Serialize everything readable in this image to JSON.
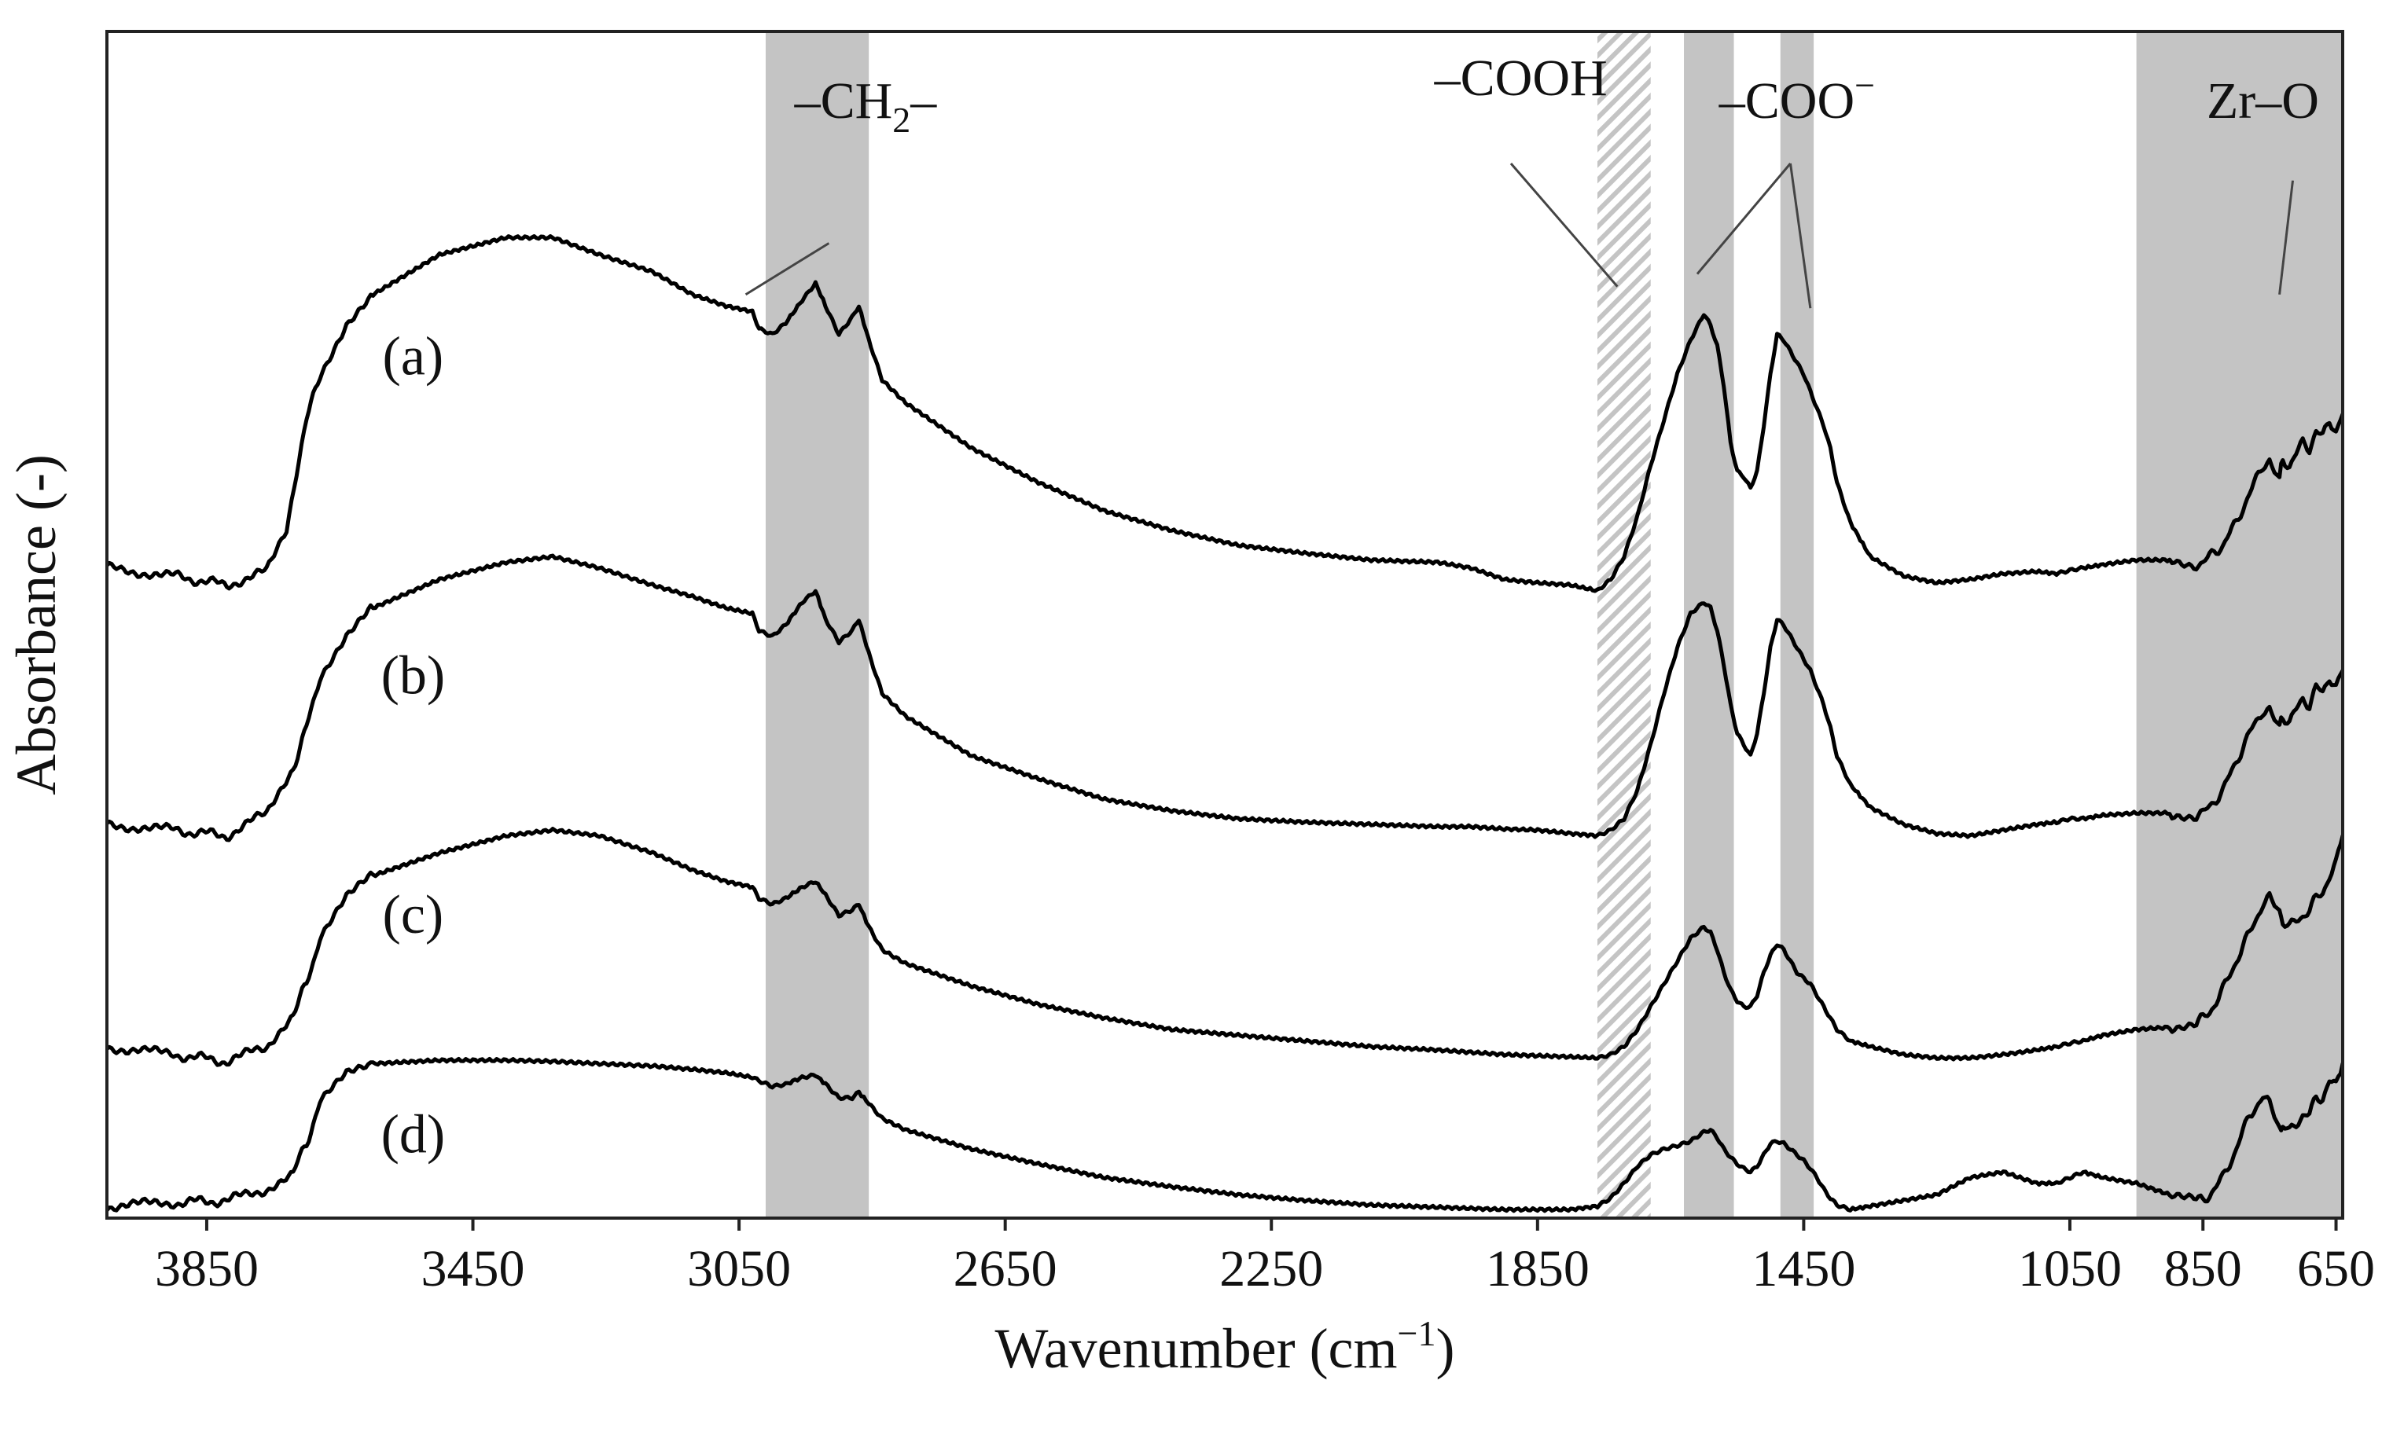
{
  "chart_data": {
    "type": "line",
    "title": "",
    "xlabel": "Wavenumber (cm",
    "xlabel_sup": "−1",
    "xlabel_close": ")",
    "ylabel": "Absorbance (-)",
    "xlim": [
      4000,
      640
    ],
    "x_reversed": true,
    "ylim": [
      0,
      10
    ],
    "grid": false,
    "xticks": [
      3850,
      3450,
      3050,
      2650,
      2250,
      1850,
      1450,
      1050,
      850,
      650
    ],
    "xtick_labels": [
      "3850",
      "3450",
      "3050",
      "2650",
      "2250",
      "1850",
      "1450",
      "1050",
      "850",
      "650"
    ],
    "bands": [
      {
        "name": "ch2",
        "from": 3010,
        "to": 2855,
        "style": "solid",
        "color": "#c4c4c4"
      },
      {
        "name": "cooh",
        "from": 1760,
        "to": 1680,
        "style": "hatched",
        "color": "#c4c4c4"
      },
      {
        "name": "coo-asym",
        "from": 1630,
        "to": 1555,
        "style": "solid",
        "color": "#c4c4c4"
      },
      {
        "name": "coo-sym",
        "from": 1485,
        "to": 1435,
        "style": "solid",
        "color": "#c4c4c4"
      },
      {
        "name": "zr-o",
        "from": 950,
        "to": 640,
        "style": "solid",
        "color": "#c4c4c4"
      }
    ],
    "annotations": [
      {
        "name": "ch2",
        "text_main": "–CH",
        "text_sub": "2",
        "text_tail": "–",
        "x": 2860,
        "y": 9.6,
        "arrow_from": [
          2915,
          8.5
        ],
        "arrow_to": [
          3040,
          8.05
        ]
      },
      {
        "name": "cooh",
        "text_main": "–COOH",
        "text_sub": "",
        "text_tail": "",
        "x": 1875,
        "y": 9.8,
        "arrow_from": [
          1890,
          9.2
        ],
        "arrow_to": [
          1730,
          8.12
        ]
      },
      {
        "name": "coo",
        "text_main": "–COO",
        "text_sub": "",
        "text_tail": "",
        "text_sup": "−",
        "x": 1460,
        "y": 9.6,
        "arrow_from": [
          1470,
          9.2
        ],
        "arrow_to": [
          1610,
          8.23
        ]
      },
      {
        "name": "coo2",
        "text_main": "",
        "text_sub": "",
        "text_tail": "",
        "x": 0,
        "y": 0,
        "arrow_from": [
          1470,
          9.2
        ],
        "arrow_to": [
          1440,
          7.93
        ]
      },
      {
        "name": "zr-o",
        "text_main": "Zr–O",
        "text_sub": "",
        "text_tail": "",
        "x": 760,
        "y": 9.6,
        "arrow_from": [
          715,
          9.05
        ],
        "arrow_to": [
          735,
          8.05
        ]
      }
    ],
    "series": [
      {
        "name": "(a)",
        "label_x": 3540,
        "label_y": 7.35,
        "x": [
          4000,
          3900,
          3820,
          3760,
          3730,
          3700,
          3680,
          3640,
          3600,
          3500,
          3400,
          3330,
          3260,
          3180,
          3120,
          3070,
          3030,
          3020,
          3000,
          2980,
          2955,
          2935,
          2920,
          2900,
          2880,
          2870,
          2855,
          2835,
          2800,
          2700,
          2600,
          2500,
          2400,
          2300,
          2200,
          2100,
          2000,
          1950,
          1900,
          1850,
          1800,
          1760,
          1740,
          1720,
          1700,
          1680,
          1660,
          1640,
          1620,
          1600,
          1590,
          1580,
          1570,
          1560,
          1550,
          1540,
          1530,
          1520,
          1510,
          1500,
          1490,
          1480,
          1470,
          1460,
          1450,
          1440,
          1430,
          1420,
          1410,
          1400,
          1380,
          1350,
          1300,
          1250,
          1200,
          1150,
          1100,
          1070,
          1050,
          1030,
          1000,
          950,
          900,
          860,
          850,
          840,
          820,
          800,
          780,
          760,
          750,
          735,
          730,
          720,
          700,
          690,
          680,
          670,
          660,
          650,
          640
        ],
        "y": [
          5.65,
          5.58,
          5.5,
          5.62,
          5.95,
          6.95,
          7.35,
          7.8,
          8.05,
          8.4,
          8.55,
          8.55,
          8.4,
          8.25,
          8.05,
          7.95,
          7.9,
          7.75,
          7.7,
          7.8,
          8.0,
          8.15,
          7.95,
          7.7,
          7.85,
          7.95,
          7.65,
          7.3,
          7.1,
          6.7,
          6.4,
          6.15,
          5.98,
          5.85,
          5.78,
          5.72,
          5.7,
          5.65,
          5.55,
          5.52,
          5.5,
          5.45,
          5.55,
          5.75,
          6.1,
          6.55,
          6.95,
          7.35,
          7.65,
          7.88,
          7.78,
          7.6,
          7.25,
          6.75,
          6.5,
          6.45,
          6.35,
          6.5,
          6.9,
          7.35,
          7.7,
          7.65,
          7.55,
          7.45,
          7.35,
          7.2,
          7.05,
          6.9,
          6.7,
          6.4,
          6.05,
          5.75,
          5.58,
          5.52,
          5.55,
          5.6,
          5.62,
          5.6,
          5.63,
          5.65,
          5.68,
          5.72,
          5.72,
          5.68,
          5.7,
          5.75,
          5.85,
          6.05,
          6.3,
          6.55,
          6.6,
          6.45,
          6.6,
          6.55,
          6.75,
          6.7,
          6.85,
          6.8,
          6.95,
          6.85,
          7.0
        ]
      },
      {
        "name": "(b)",
        "label_x": 3540,
        "label_y": 4.55,
        "x": [
          4000,
          3900,
          3820,
          3760,
          3720,
          3700,
          3680,
          3640,
          3600,
          3500,
          3400,
          3330,
          3260,
          3180,
          3120,
          3070,
          3030,
          3020,
          3000,
          2980,
          2955,
          2935,
          2920,
          2900,
          2880,
          2870,
          2855,
          2835,
          2800,
          2700,
          2600,
          2500,
          2400,
          2300,
          2200,
          2100,
          2000,
          1950,
          1900,
          1850,
          1800,
          1760,
          1740,
          1720,
          1700,
          1680,
          1660,
          1640,
          1620,
          1600,
          1590,
          1580,
          1570,
          1560,
          1550,
          1540,
          1530,
          1520,
          1510,
          1500,
          1490,
          1480,
          1470,
          1460,
          1450,
          1440,
          1430,
          1420,
          1410,
          1400,
          1380,
          1350,
          1300,
          1250,
          1200,
          1150,
          1100,
          1070,
          1050,
          1030,
          1000,
          950,
          900,
          860,
          850,
          840,
          820,
          800,
          780,
          760,
          750,
          735,
          730,
          720,
          700,
          690,
          680,
          670,
          660,
          650,
          640
        ],
        "y": [
          3.4,
          3.35,
          3.3,
          3.5,
          3.9,
          4.25,
          4.7,
          5.05,
          5.3,
          5.55,
          5.7,
          5.75,
          5.65,
          5.5,
          5.4,
          5.3,
          5.25,
          5.1,
          5.05,
          5.15,
          5.35,
          5.45,
          5.2,
          5.0,
          5.1,
          5.2,
          4.9,
          4.55,
          4.35,
          4.0,
          3.8,
          3.62,
          3.52,
          3.45,
          3.42,
          3.4,
          3.38,
          3.38,
          3.36,
          3.35,
          3.32,
          3.3,
          3.35,
          3.45,
          3.7,
          4.1,
          4.55,
          4.95,
          5.25,
          5.35,
          5.3,
          5.1,
          4.8,
          4.45,
          4.2,
          4.1,
          4.0,
          4.2,
          4.55,
          4.95,
          5.2,
          5.15,
          5.05,
          4.95,
          4.85,
          4.75,
          4.6,
          4.45,
          4.25,
          4.0,
          3.75,
          3.55,
          3.4,
          3.32,
          3.3,
          3.35,
          3.4,
          3.42,
          3.45,
          3.45,
          3.48,
          3.5,
          3.5,
          3.48,
          3.5,
          3.55,
          3.7,
          3.95,
          4.2,
          4.4,
          4.4,
          4.25,
          4.35,
          4.3,
          4.5,
          4.45,
          4.6,
          4.55,
          4.7,
          4.6,
          4.75
        ]
      },
      {
        "name": "(c)",
        "label_x": 3540,
        "label_y": 2.45,
        "x": [
          4000,
          3900,
          3820,
          3760,
          3720,
          3700,
          3680,
          3640,
          3600,
          3500,
          3400,
          3330,
          3260,
          3180,
          3120,
          3070,
          3030,
          3020,
          3000,
          2980,
          2955,
          2935,
          2920,
          2900,
          2880,
          2870,
          2855,
          2835,
          2800,
          2700,
          2600,
          2500,
          2400,
          2300,
          2200,
          2100,
          2000,
          1950,
          1900,
          1850,
          1800,
          1760,
          1740,
          1720,
          1700,
          1680,
          1660,
          1640,
          1620,
          1600,
          1590,
          1580,
          1570,
          1560,
          1550,
          1540,
          1530,
          1520,
          1510,
          1500,
          1490,
          1480,
          1470,
          1460,
          1450,
          1440,
          1430,
          1420,
          1410,
          1400,
          1380,
          1350,
          1300,
          1250,
          1200,
          1150,
          1100,
          1070,
          1050,
          1030,
          1000,
          950,
          900,
          860,
          850,
          840,
          820,
          800,
          780,
          760,
          750,
          735,
          730,
          720,
          700,
          690,
          680,
          670,
          660,
          650,
          640
        ],
        "y": [
          1.45,
          1.38,
          1.32,
          1.45,
          1.75,
          2.0,
          2.4,
          2.75,
          2.95,
          3.15,
          3.3,
          3.35,
          3.3,
          3.15,
          3.0,
          2.9,
          2.85,
          2.75,
          2.7,
          2.75,
          2.85,
          2.9,
          2.78,
          2.6,
          2.65,
          2.7,
          2.5,
          2.3,
          2.18,
          1.98,
          1.82,
          1.7,
          1.6,
          1.55,
          1.5,
          1.45,
          1.42,
          1.4,
          1.38,
          1.37,
          1.36,
          1.35,
          1.38,
          1.45,
          1.6,
          1.8,
          2.0,
          2.2,
          2.4,
          2.5,
          2.45,
          2.3,
          2.1,
          1.95,
          1.85,
          1.8,
          1.8,
          1.9,
          2.1,
          2.25,
          2.35,
          2.3,
          2.2,
          2.1,
          2.05,
          2.0,
          1.9,
          1.8,
          1.7,
          1.6,
          1.5,
          1.45,
          1.38,
          1.35,
          1.35,
          1.38,
          1.42,
          1.45,
          1.48,
          1.5,
          1.55,
          1.6,
          1.62,
          1.65,
          1.7,
          1.75,
          1.95,
          2.2,
          2.45,
          2.7,
          2.75,
          2.6,
          2.55,
          2.5,
          2.6,
          2.65,
          2.75,
          2.8,
          2.95,
          3.05,
          3.3
        ]
      },
      {
        "name": "(d)",
        "label_x": 3540,
        "label_y": 0.52,
        "x": [
          4000,
          3900,
          3820,
          3760,
          3720,
          3700,
          3680,
          3640,
          3600,
          3500,
          3400,
          3330,
          3260,
          3180,
          3120,
          3070,
          3030,
          3020,
          3000,
          2980,
          2955,
          2935,
          2920,
          2900,
          2880,
          2870,
          2855,
          2835,
          2800,
          2700,
          2600,
          2500,
          2400,
          2300,
          2200,
          2100,
          2000,
          1950,
          1900,
          1850,
          1800,
          1760,
          1740,
          1720,
          1700,
          1680,
          1660,
          1640,
          1620,
          1600,
          1590,
          1580,
          1570,
          1560,
          1550,
          1540,
          1530,
          1520,
          1510,
          1500,
          1490,
          1480,
          1470,
          1460,
          1450,
          1440,
          1430,
          1420,
          1410,
          1400,
          1380,
          1350,
          1300,
          1250,
          1200,
          1150,
          1100,
          1070,
          1050,
          1030,
          1000,
          950,
          900,
          860,
          850,
          840,
          820,
          800,
          780,
          760,
          750,
          735,
          730,
          720,
          700,
          690,
          680,
          670,
          660,
          650,
          640
        ],
        "y": [
          0.05,
          0.08,
          0.1,
          0.2,
          0.35,
          0.6,
          0.95,
          1.2,
          1.3,
          1.33,
          1.33,
          1.32,
          1.3,
          1.28,
          1.25,
          1.22,
          1.18,
          1.15,
          1.1,
          1.12,
          1.18,
          1.2,
          1.12,
          1.0,
          1.0,
          1.05,
          0.95,
          0.82,
          0.72,
          0.55,
          0.42,
          0.3,
          0.22,
          0.15,
          0.1,
          0.06,
          0.04,
          0.03,
          0.02,
          0.02,
          0.02,
          0.05,
          0.12,
          0.25,
          0.4,
          0.5,
          0.55,
          0.58,
          0.62,
          0.7,
          0.72,
          0.65,
          0.55,
          0.48,
          0.42,
          0.38,
          0.35,
          0.4,
          0.5,
          0.6,
          0.62,
          0.6,
          0.55,
          0.5,
          0.45,
          0.38,
          0.3,
          0.2,
          0.12,
          0.06,
          0.02,
          0.05,
          0.1,
          0.15,
          0.3,
          0.35,
          0.25,
          0.25,
          0.3,
          0.35,
          0.3,
          0.25,
          0.15,
          0.1,
          0.1,
          0.15,
          0.3,
          0.55,
          0.85,
          1.0,
          0.95,
          0.7,
          0.75,
          0.7,
          0.85,
          0.85,
          1.0,
          1.0,
          1.15,
          1.1,
          1.3
        ]
      }
    ]
  }
}
